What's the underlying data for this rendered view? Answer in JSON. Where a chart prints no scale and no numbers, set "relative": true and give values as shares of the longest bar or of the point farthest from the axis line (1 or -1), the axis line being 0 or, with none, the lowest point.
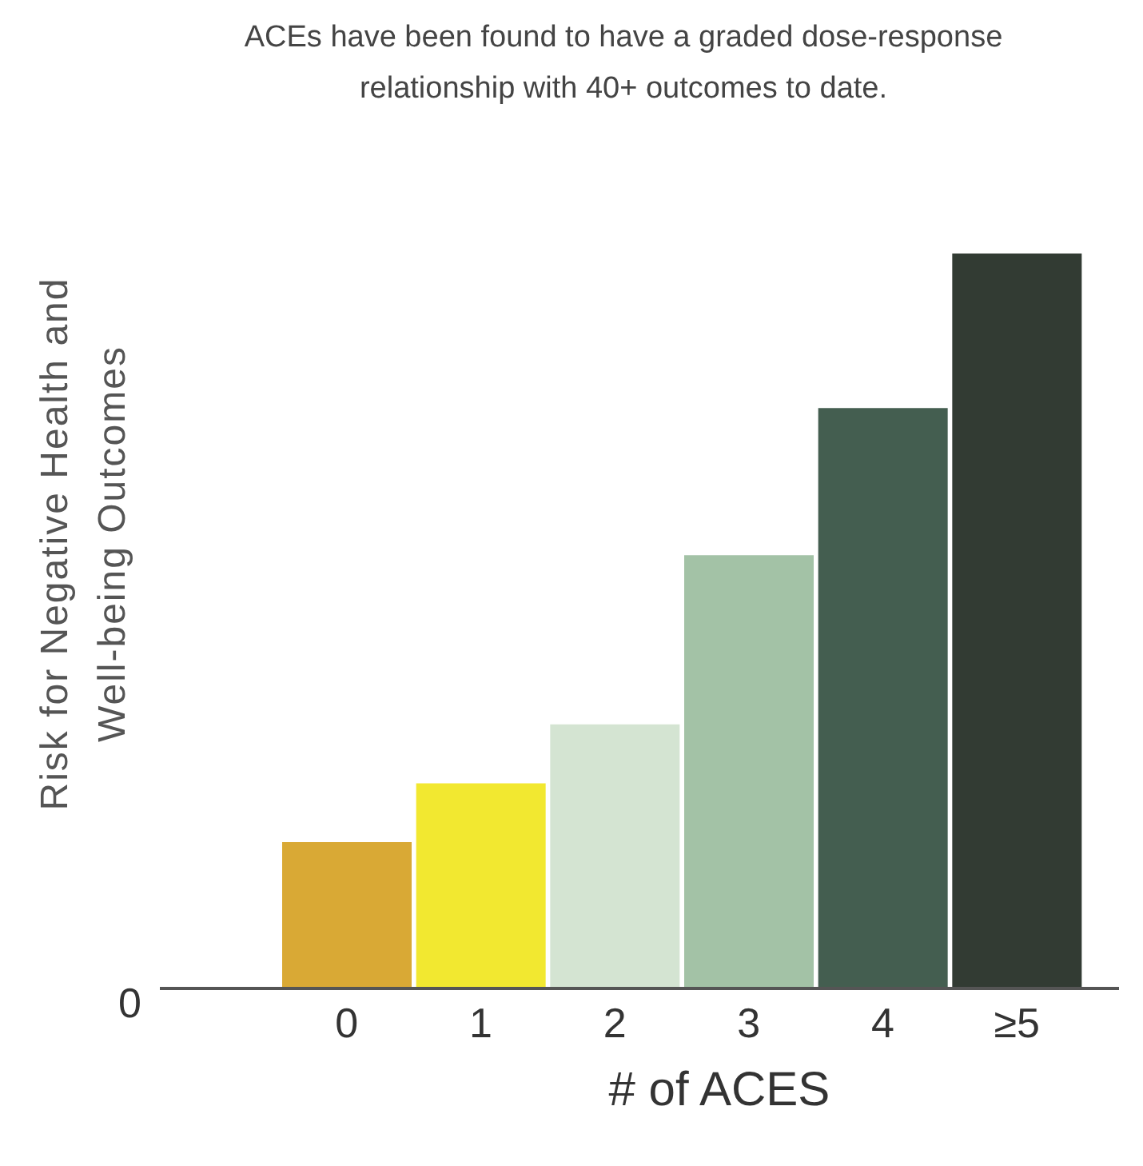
{
  "chart_data": {
    "type": "bar",
    "title": "ACEs have been found to have a graded dose-response relationship with 40+ outcomes to date.",
    "xlabel": "# of ACES",
    "ylabel": "Risk for Negative Health and Well-being Outcomes",
    "categories": [
      "0",
      "1",
      "2",
      "3",
      "4",
      "≥5"
    ],
    "values": [
      0.2,
      0.28,
      0.36,
      0.59,
      0.79,
      1
    ],
    "colors": [
      "#d9a935",
      "#f2e830",
      "#d4e4d2",
      "#a3c2a6",
      "#445e50",
      "#323b33"
    ],
    "relative": true,
    "annotations": [
      "0"
    ]
  }
}
